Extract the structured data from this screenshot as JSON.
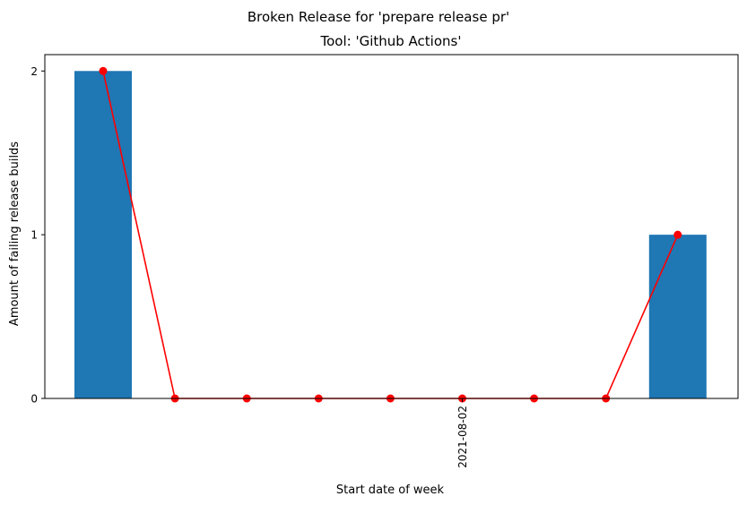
{
  "chart_data": {
    "type": "bar",
    "suptitle": "Broken Release for 'prepare release pr'",
    "title": "Tool: 'Github Actions'",
    "xlabel": "Start date of week",
    "ylabel": "Amount of failing release builds",
    "categories": [
      "",
      "",
      "",
      "",
      "",
      "2021-08-02",
      "",
      "",
      ""
    ],
    "values": [
      2,
      0,
      0,
      0,
      0,
      0,
      0,
      0,
      1
    ],
    "line_values": [
      2,
      0,
      0,
      0,
      0,
      0,
      0,
      0,
      1
    ],
    "ylim": [
      0,
      2.1
    ],
    "yticks": [
      0,
      1,
      2
    ],
    "xticks_shown": [
      "2021-08-02"
    ],
    "bar_color": "#1f77b4",
    "line_color": "#ff0000",
    "grid": false,
    "legend": "none"
  }
}
